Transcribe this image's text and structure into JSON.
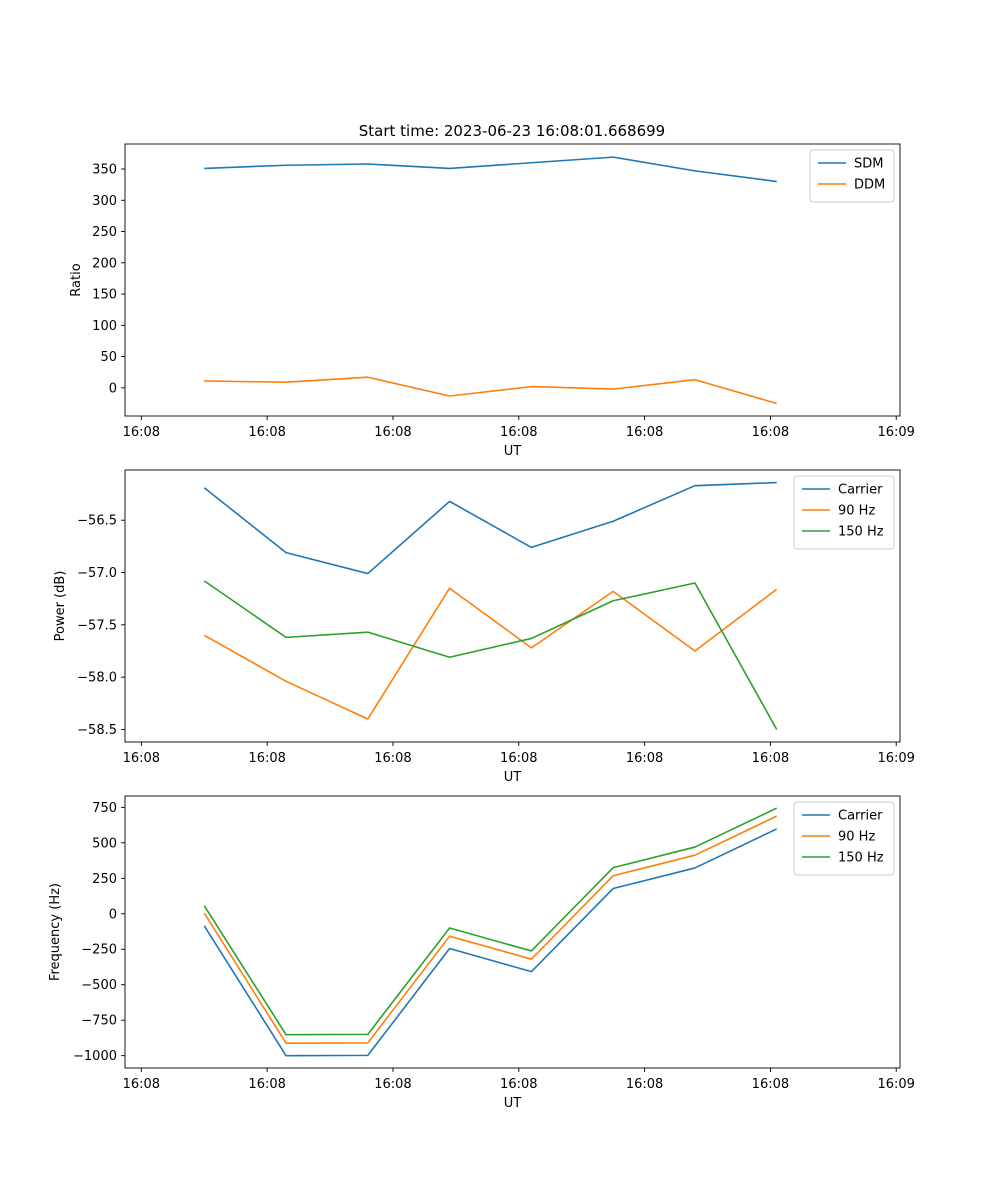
{
  "figure_title": "Start time: 2023-06-23 16:08:01.668699",
  "colors": {
    "blue": "#1f77b4",
    "orange": "#ff7f0e",
    "green": "#2ca02c"
  },
  "chart_data": [
    {
      "type": "line",
      "title": "Start time: 2023-06-23 16:08:01.668699",
      "xlabel": "UT",
      "ylabel": "Ratio",
      "x_tick_labels": [
        "16:08",
        "16:08",
        "16:08",
        "16:08",
        "16:08",
        "16:08",
        "16:09"
      ],
      "x_ticks": [
        0,
        1,
        2,
        3,
        4,
        5,
        6
      ],
      "x": [
        0.5,
        1.15,
        1.8,
        2.45,
        3.1,
        3.75,
        4.4,
        5.05
      ],
      "xlim": [
        -0.13,
        6.03
      ],
      "ylim": [
        -45,
        390
      ],
      "yticks": [
        0,
        50,
        100,
        150,
        200,
        250,
        300,
        350
      ],
      "ytick_labels": [
        "0",
        "50",
        "100",
        "150",
        "200",
        "250",
        "300",
        "350"
      ],
      "legend_loc": "top-right",
      "series": [
        {
          "name": "SDM",
          "color": "#1f77b4",
          "values": [
            351,
            356,
            358,
            351,
            360,
            369,
            347,
            330
          ]
        },
        {
          "name": "DDM",
          "color": "#ff7f0e",
          "values": [
            11,
            9,
            17,
            -13,
            2,
            -2,
            13,
            -25
          ]
        }
      ]
    },
    {
      "type": "line",
      "title": "",
      "xlabel": "UT",
      "ylabel": "Power (dB)",
      "x_tick_labels": [
        "16:08",
        "16:08",
        "16:08",
        "16:08",
        "16:08",
        "16:08",
        "16:09"
      ],
      "x_ticks": [
        0,
        1,
        2,
        3,
        4,
        5,
        6
      ],
      "x": [
        0.5,
        1.15,
        1.8,
        2.45,
        3.1,
        3.75,
        4.4,
        5.05
      ],
      "xlim": [
        -0.13,
        6.03
      ],
      "ylim": [
        -58.62,
        -56.02
      ],
      "yticks": [
        -56.5,
        -57.0,
        -57.5,
        -58.0,
        -58.5
      ],
      "ytick_labels": [
        "−56.5",
        "−57.0",
        "−57.5",
        "−58.0",
        "−58.5"
      ],
      "legend_loc": "top-right",
      "series": [
        {
          "name": "Carrier",
          "color": "#1f77b4",
          "values": [
            -56.19,
            -56.81,
            -57.01,
            -56.32,
            -56.76,
            -56.51,
            -56.17,
            -56.14
          ]
        },
        {
          "name": "90 Hz",
          "color": "#ff7f0e",
          "values": [
            -57.6,
            -58.04,
            -58.4,
            -57.15,
            -57.72,
            -57.18,
            -57.75,
            -57.16
          ]
        },
        {
          "name": "150 Hz",
          "color": "#2ca02c",
          "values": [
            -57.08,
            -57.62,
            -57.57,
            -57.81,
            -57.63,
            -57.27,
            -57.1,
            -58.5
          ]
        }
      ]
    },
    {
      "type": "line",
      "title": "",
      "xlabel": "UT",
      "ylabel": "Frequency (Hz)",
      "x_tick_labels": [
        "16:08",
        "16:08",
        "16:08",
        "16:08",
        "16:08",
        "16:08",
        "16:09"
      ],
      "x_ticks": [
        0,
        1,
        2,
        3,
        4,
        5,
        6
      ],
      "x": [
        0.5,
        1.15,
        1.8,
        2.45,
        3.1,
        3.75,
        4.4,
        5.05
      ],
      "xlim": [
        -0.13,
        6.03
      ],
      "ylim": [
        -1087,
        830
      ],
      "yticks": [
        750,
        500,
        250,
        0,
        -250,
        -500,
        -750,
        -1000
      ],
      "ytick_labels": [
        "750",
        "500",
        "250",
        "0",
        "−250",
        "−500",
        "−750",
        "−1000"
      ],
      "legend_loc": "top-right",
      "series": [
        {
          "name": "Carrier",
          "color": "#1f77b4",
          "values": [
            -85,
            -1000,
            -998,
            -245,
            -408,
            178,
            323,
            598
          ]
        },
        {
          "name": "90 Hz",
          "color": "#ff7f0e",
          "values": [
            5,
            -912,
            -910,
            -158,
            -320,
            268,
            413,
            688
          ]
        },
        {
          "name": "150 Hz",
          "color": "#2ca02c",
          "values": [
            57,
            -852,
            -850,
            -100,
            -262,
            325,
            470,
            745
          ]
        }
      ]
    }
  ]
}
